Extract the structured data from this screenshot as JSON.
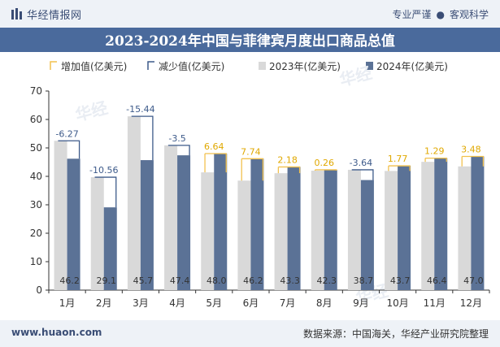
{
  "header": {
    "brand": "华经情报网",
    "tagline_left": "专业严谨",
    "tagline_right": "客观科学"
  },
  "footer": {
    "website": "www.huaon.com",
    "source": "数据来源：中国海关，华经产业研究院整理"
  },
  "colors": {
    "increase": "#f2c14e",
    "decrease": "#3d5a8a",
    "y2023": "#d9d9d9",
    "y2024": "#5b7296",
    "increase_label": "#e0a800",
    "decrease_label": "#3d5a8a"
  },
  "chart_data": {
    "type": "bar",
    "title": "2023-2024年中国与菲律宾月度出口商品总值",
    "categories": [
      "1月",
      "2月",
      "3月",
      "4月",
      "5月",
      "6月",
      "7月",
      "8月",
      "9月",
      "10月",
      "11月",
      "12月"
    ],
    "series": [
      {
        "name": "2023年(亿美元)",
        "values": [
          52.5,
          39.7,
          61.1,
          50.9,
          41.4,
          38.5,
          41.1,
          42.0,
          42.3,
          41.9,
          45.1,
          43.5
        ]
      },
      {
        "name": "2024年(亿美元)",
        "values": [
          46.2,
          29.1,
          45.7,
          47.4,
          48.0,
          46.2,
          43.3,
          42.3,
          38.7,
          43.7,
          46.4,
          47.0
        ]
      }
    ],
    "change_series": [
      {
        "name": "增加值(亿美元)",
        "kind": "increase"
      },
      {
        "name": "减少值(亿美元)",
        "kind": "decrease"
      }
    ],
    "changes": [
      -6.27,
      -10.56,
      -15.44,
      -3.5,
      6.64,
      7.74,
      2.18,
      0.26,
      -3.64,
      1.77,
      1.29,
      3.48
    ],
    "data_labels_2024": [
      "46.2",
      "29.1",
      "45.7",
      "47.4",
      "48.0",
      "46.2",
      "43.3",
      "42.3",
      "38.7",
      "43.7",
      "46.4",
      "47.0"
    ],
    "change_labels": [
      "-6.27",
      "-10.56",
      "-15.44",
      "-3.5",
      "6.64",
      "7.74",
      "2.18",
      "0.26",
      "-3.64",
      "1.77",
      "1.29",
      "3.48"
    ],
    "yticks": [
      "0",
      "10",
      "20",
      "30",
      "40",
      "50",
      "60",
      "70"
    ],
    "ylim": [
      0,
      70
    ],
    "legend_position": "top",
    "grid": false
  }
}
